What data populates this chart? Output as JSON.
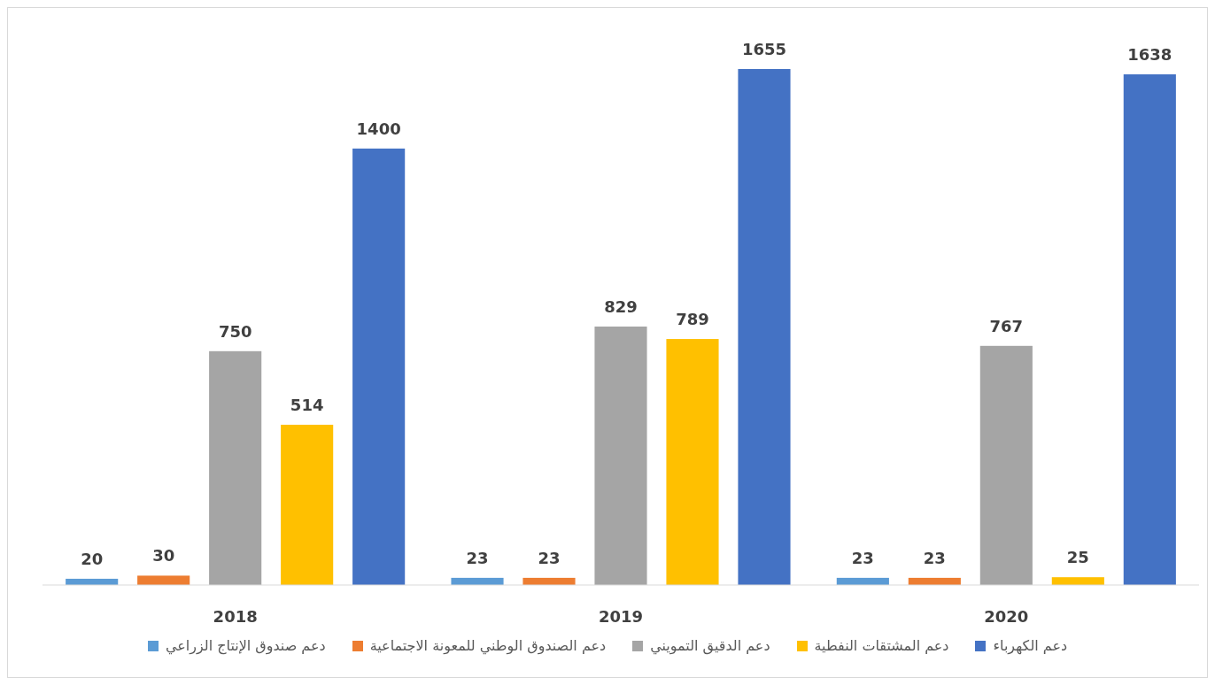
{
  "chart_data": {
    "type": "bar",
    "categories": [
      "2018",
      "2019",
      "2020"
    ],
    "series": [
      {
        "name": "دعم صندوق الإنتاج الزراعي",
        "color": "#5b9bd5",
        "values": [
          20,
          23,
          23
        ]
      },
      {
        "name": "دعم الصندوق الوطني للمعونة الاجتماعية",
        "color": "#ed7d31",
        "values": [
          30,
          23,
          23
        ]
      },
      {
        "name": "دعم الدقيق التمويني",
        "color": "#a5a5a5",
        "values": [
          750,
          829,
          767
        ]
      },
      {
        "name": "دعم المشتقات النفطية",
        "color": "#ffc000",
        "values": [
          514,
          789,
          25
        ]
      },
      {
        "name": "دعم الكهرباء",
        "color": "#4472c4",
        "values": [
          1400,
          1655,
          1638
        ]
      }
    ],
    "data_labels": true,
    "legend": "bottom"
  }
}
